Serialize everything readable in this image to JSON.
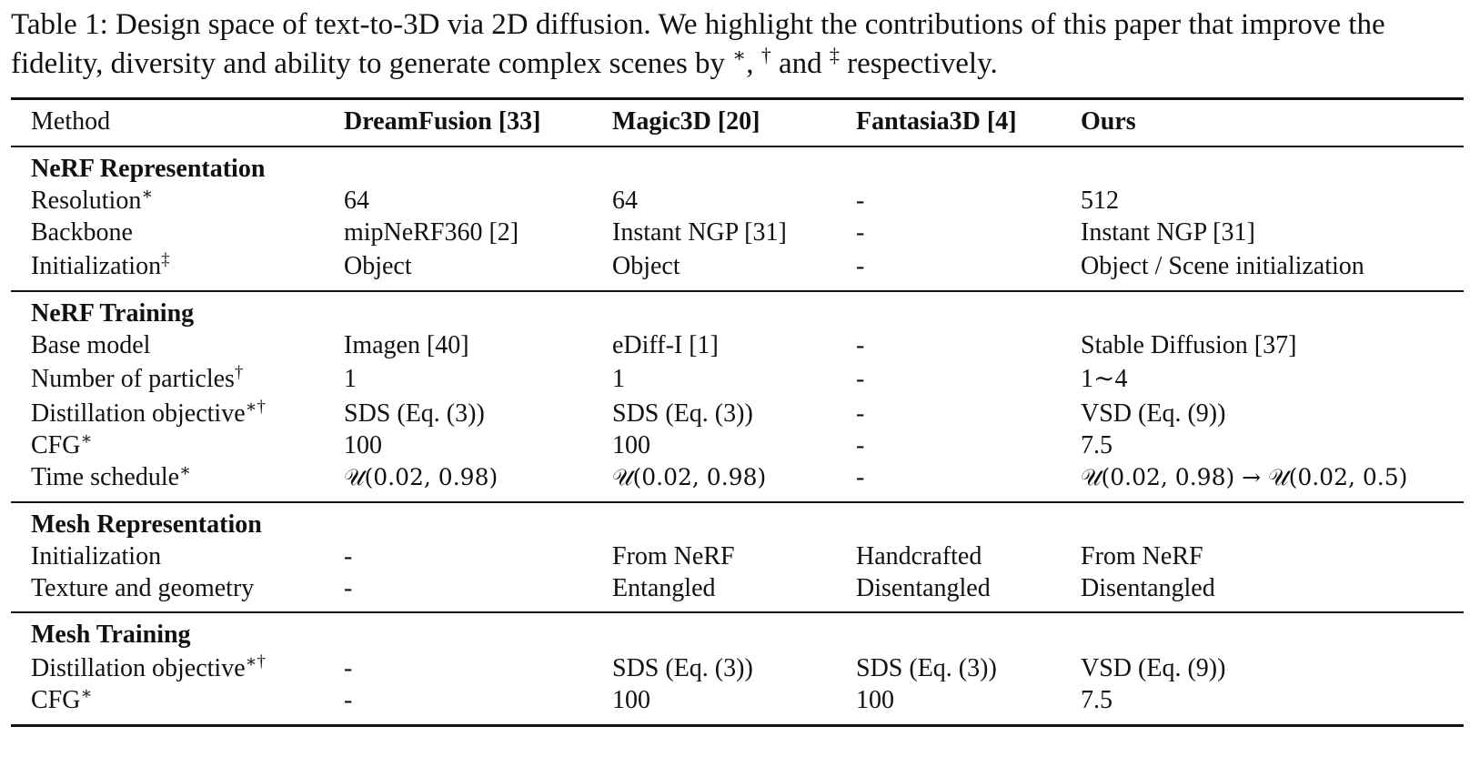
{
  "caption": {
    "part1": "Table 1: Design space of text-to-3D via 2D diffusion. We highlight the contributions of this paper that improve the fidelity, diversity and ability to generate complex scenes by ",
    "mark1": "∗",
    "sep1": ", ",
    "mark2": "†",
    "sep2": " and ",
    "mark3": "‡",
    "part2": " respectively."
  },
  "header": [
    "Method",
    "DreamFusion [33]",
    "Magic3D [20]",
    "Fantasia3D [4]",
    "Ours"
  ],
  "sections": [
    {
      "title": "NeRF Representation"
    },
    {
      "title": "NeRF Training"
    },
    {
      "title": "Mesh Representation"
    },
    {
      "title": "Mesh Training"
    }
  ],
  "rows": [
    {
      "label": "Resolution",
      "mark": "∗",
      "cells": [
        "64",
        "64",
        "-",
        "512"
      ]
    },
    {
      "label": "Backbone",
      "mark": "",
      "cells": [
        "mipNeRF360 [2]",
        "Instant NGP [31]",
        "-",
        "Instant NGP [31]"
      ]
    },
    {
      "label": "Initialization",
      "mark": "‡",
      "cells": [
        "Object",
        "Object",
        "-",
        "Object / Scene initialization"
      ]
    },
    {
      "label": "Base model",
      "mark": "",
      "cells": [
        "Imagen [40]",
        "eDiff-I [1]",
        "-",
        "Stable Diffusion [37]"
      ]
    },
    {
      "label": "Number of particles",
      "mark": "†",
      "cells": [
        "1",
        "1",
        "-",
        "1∼4"
      ]
    },
    {
      "label": "Distillation objective",
      "mark": "∗†",
      "cells": [
        "SDS (Eq. (3))",
        "SDS (Eq. (3))",
        "-",
        "VSD (Eq. (9))"
      ]
    },
    {
      "label": "CFG",
      "mark": "∗",
      "cells": [
        "100",
        "100",
        "-",
        "7.5"
      ]
    },
    {
      "label": "Time schedule",
      "mark": "∗",
      "cells": [
        "𝒰(0.02, 0.98)",
        "𝒰(0.02, 0.98)",
        "-",
        "𝒰(0.02, 0.98) → 𝒰(0.02, 0.5)"
      ]
    },
    {
      "label": "Initialization",
      "mark": "",
      "cells": [
        "-",
        "From NeRF",
        "Handcrafted",
        "From NeRF"
      ]
    },
    {
      "label": "Texture and geometry",
      "mark": "",
      "cells": [
        "-",
        "Entangled",
        "Disentangled",
        "Disentangled"
      ]
    },
    {
      "label": "Distillation objective",
      "mark": "∗†",
      "cells": [
        "-",
        "SDS (Eq. (3))",
        "SDS (Eq. (3))",
        "VSD (Eq. (9))"
      ]
    },
    {
      "label": "CFG",
      "mark": "∗",
      "cells": [
        "-",
        "100",
        "100",
        "7.5"
      ]
    }
  ]
}
